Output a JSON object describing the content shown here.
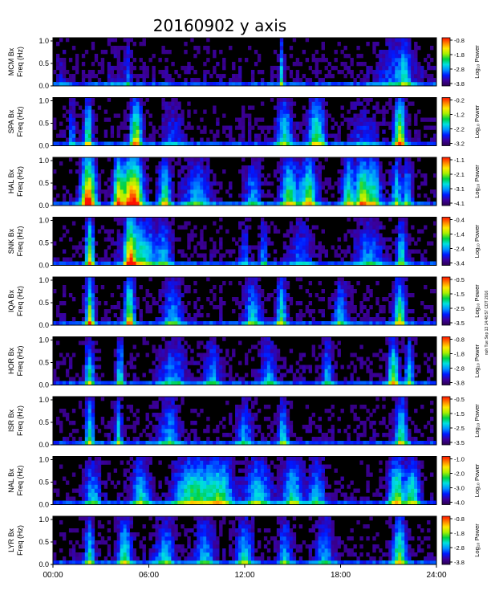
{
  "chart_data": {
    "type": "heatmap",
    "title": "20160902 y axis",
    "x": {
      "ticks": [
        "00:00",
        "06:00",
        "12:00",
        "18:00",
        "24:00"
      ],
      "range_hours": [
        0,
        24
      ]
    },
    "y": {
      "label": "Freq (Hz)",
      "ticks": [
        "0.0",
        "0.5",
        "1.0"
      ],
      "range": [
        0,
        1
      ]
    },
    "colorbar_label": "Log₁₀ Power",
    "colormap": [
      "#2a0050",
      "#3b009a",
      "#0018ff",
      "#0090ff",
      "#00e0e0",
      "#00d040",
      "#a8f000",
      "#ffe800",
      "#ff8000",
      "#ff1000"
    ],
    "side_note": "noh Tue Sep 13 14:48:57 CDT 2016",
    "panels": [
      {
        "station": "MCM Bx",
        "cbar_ticks": [
          "-0.8",
          "-1.8",
          "-2.8",
          "-3.8"
        ],
        "activity": [
          [
            0.5,
            0.35,
            0.1
          ],
          [
            3.8,
            0.35,
            0.12
          ],
          [
            4.7,
            0.2,
            0.25
          ],
          [
            14.3,
            0.15,
            0.45
          ],
          [
            21.5,
            1.2,
            0.25
          ],
          [
            22.0,
            0.3,
            0.3
          ]
        ]
      },
      {
        "station": "SPA Bx",
        "cbar_ticks": [
          "-0.2",
          "-1.2",
          "-2.2",
          "-3.2"
        ],
        "activity": [
          [
            2.2,
            0.25,
            0.55
          ],
          [
            5.2,
            0.35,
            0.7
          ],
          [
            1.2,
            0.15,
            0.35
          ],
          [
            7.5,
            0.6,
            0.2
          ],
          [
            14.5,
            0.5,
            0.45
          ],
          [
            16.5,
            0.5,
            0.55
          ],
          [
            21.7,
            0.35,
            0.75
          ],
          [
            19.5,
            0.8,
            0.18
          ]
        ]
      },
      {
        "station": "HAL Bx",
        "cbar_ticks": [
          "-1.1",
          "-2.1",
          "-3.1",
          "-4.1"
        ],
        "activity": [
          [
            2.2,
            0.45,
            0.95
          ],
          [
            5.0,
            0.6,
            1.0
          ],
          [
            4.1,
            0.3,
            0.7
          ],
          [
            7.0,
            0.35,
            0.55
          ],
          [
            9.0,
            0.8,
            0.35
          ],
          [
            12.5,
            0.5,
            0.3
          ],
          [
            14.8,
            0.5,
            0.6
          ],
          [
            16.0,
            0.5,
            0.6
          ],
          [
            18.5,
            0.35,
            0.55
          ],
          [
            19.3,
            0.35,
            0.6
          ],
          [
            20.0,
            0.5,
            0.55
          ],
          [
            21.5,
            0.3,
            0.45
          ],
          [
            22.2,
            0.3,
            0.35
          ]
        ]
      },
      {
        "station": "SNK Bx",
        "cbar_ticks": [
          "-0.4",
          "-1.4",
          "-2.4",
          "-3.4"
        ],
        "activity": [
          [
            2.3,
            0.25,
            0.7
          ],
          [
            4.8,
            0.3,
            0.65
          ],
          [
            5.5,
            1.0,
            0.5
          ],
          [
            7.0,
            0.4,
            0.3
          ],
          [
            12.0,
            0.3,
            0.25
          ],
          [
            13.2,
            0.25,
            0.3
          ],
          [
            15.5,
            0.6,
            0.25
          ],
          [
            19.8,
            0.8,
            0.3
          ],
          [
            21.8,
            0.3,
            0.45
          ]
        ]
      },
      {
        "station": "IQA Bx",
        "cbar_ticks": [
          "-0.5",
          "-1.5",
          "-2.5",
          "-3.5"
        ],
        "activity": [
          [
            2.3,
            0.25,
            0.7
          ],
          [
            4.8,
            0.3,
            0.7
          ],
          [
            7.5,
            0.6,
            0.35
          ],
          [
            12.5,
            0.5,
            0.4
          ],
          [
            14.3,
            0.3,
            0.5
          ],
          [
            18.0,
            0.4,
            0.35
          ],
          [
            21.7,
            0.35,
            0.6
          ]
        ]
      },
      {
        "station": "HOR Bx",
        "cbar_ticks": [
          "-0.8",
          "-1.8",
          "-2.8",
          "-3.8"
        ],
        "activity": [
          [
            2.3,
            0.25,
            0.5
          ],
          [
            4.2,
            0.2,
            0.45
          ],
          [
            7.5,
            0.8,
            0.3
          ],
          [
            10.0,
            0.5,
            0.3
          ],
          [
            13.5,
            0.5,
            0.3
          ],
          [
            17.2,
            0.3,
            0.35
          ],
          [
            21.3,
            0.3,
            0.6
          ],
          [
            22.3,
            0.25,
            0.45
          ]
        ]
      },
      {
        "station": "ISR Bx",
        "cbar_ticks": [
          "-0.5",
          "-1.5",
          "-2.5",
          "-3.5"
        ],
        "activity": [
          [
            2.3,
            0.25,
            0.5
          ],
          [
            4.1,
            0.2,
            0.45
          ],
          [
            7.3,
            0.6,
            0.35
          ],
          [
            12.0,
            0.5,
            0.3
          ],
          [
            14.4,
            0.3,
            0.4
          ],
          [
            21.8,
            0.35,
            0.55
          ]
        ]
      },
      {
        "station": "NAL Bx",
        "cbar_ticks": [
          "-1.0",
          "-2.0",
          "-3.0",
          "-4.0"
        ],
        "activity": [
          [
            2.5,
            0.5,
            0.35
          ],
          [
            5.5,
            0.6,
            0.4
          ],
          [
            8.8,
            1.2,
            0.55
          ],
          [
            10.5,
            0.8,
            0.45
          ],
          [
            12.8,
            0.8,
            0.4
          ],
          [
            15.0,
            0.6,
            0.45
          ],
          [
            16.5,
            0.5,
            0.35
          ],
          [
            21.5,
            0.5,
            0.6
          ],
          [
            22.5,
            0.4,
            0.5
          ]
        ]
      },
      {
        "station": "LYR Bx",
        "cbar_ticks": [
          "-0.8",
          "-1.8",
          "-2.8",
          "-3.8"
        ],
        "activity": [
          [
            2.3,
            0.3,
            0.45
          ],
          [
            4.5,
            0.4,
            0.5
          ],
          [
            7.0,
            0.6,
            0.35
          ],
          [
            9.5,
            0.6,
            0.35
          ],
          [
            12.0,
            0.5,
            0.4
          ],
          [
            14.5,
            0.4,
            0.35
          ],
          [
            17.0,
            0.5,
            0.35
          ],
          [
            21.7,
            0.4,
            0.6
          ]
        ]
      }
    ]
  }
}
